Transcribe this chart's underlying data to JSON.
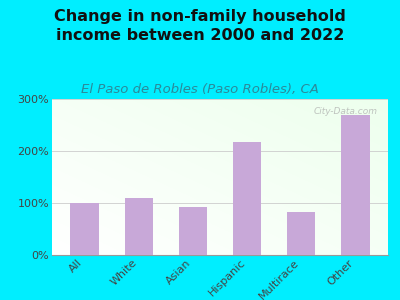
{
  "title": "Change in non-family household\nincome between 2000 and 2022",
  "subtitle": "El Paso de Robles (Paso Robles), CA",
  "categories": [
    "All",
    "White",
    "Asian",
    "Hispanic",
    "Multirace",
    "Other"
  ],
  "values": [
    100,
    110,
    93,
    218,
    82,
    270
  ],
  "bar_color": "#c8a8d8",
  "ylim": [
    0,
    300
  ],
  "yticks": [
    0,
    100,
    200,
    300
  ],
  "ytick_labels": [
    "0%",
    "100%",
    "200%",
    "300%"
  ],
  "background_outer": "#00eeff",
  "title_fontsize": 11.5,
  "subtitle_fontsize": 9.5,
  "subtitle_color": "#2a8a9a",
  "watermark": "City-Data.com",
  "grid_color": "#cccccc"
}
